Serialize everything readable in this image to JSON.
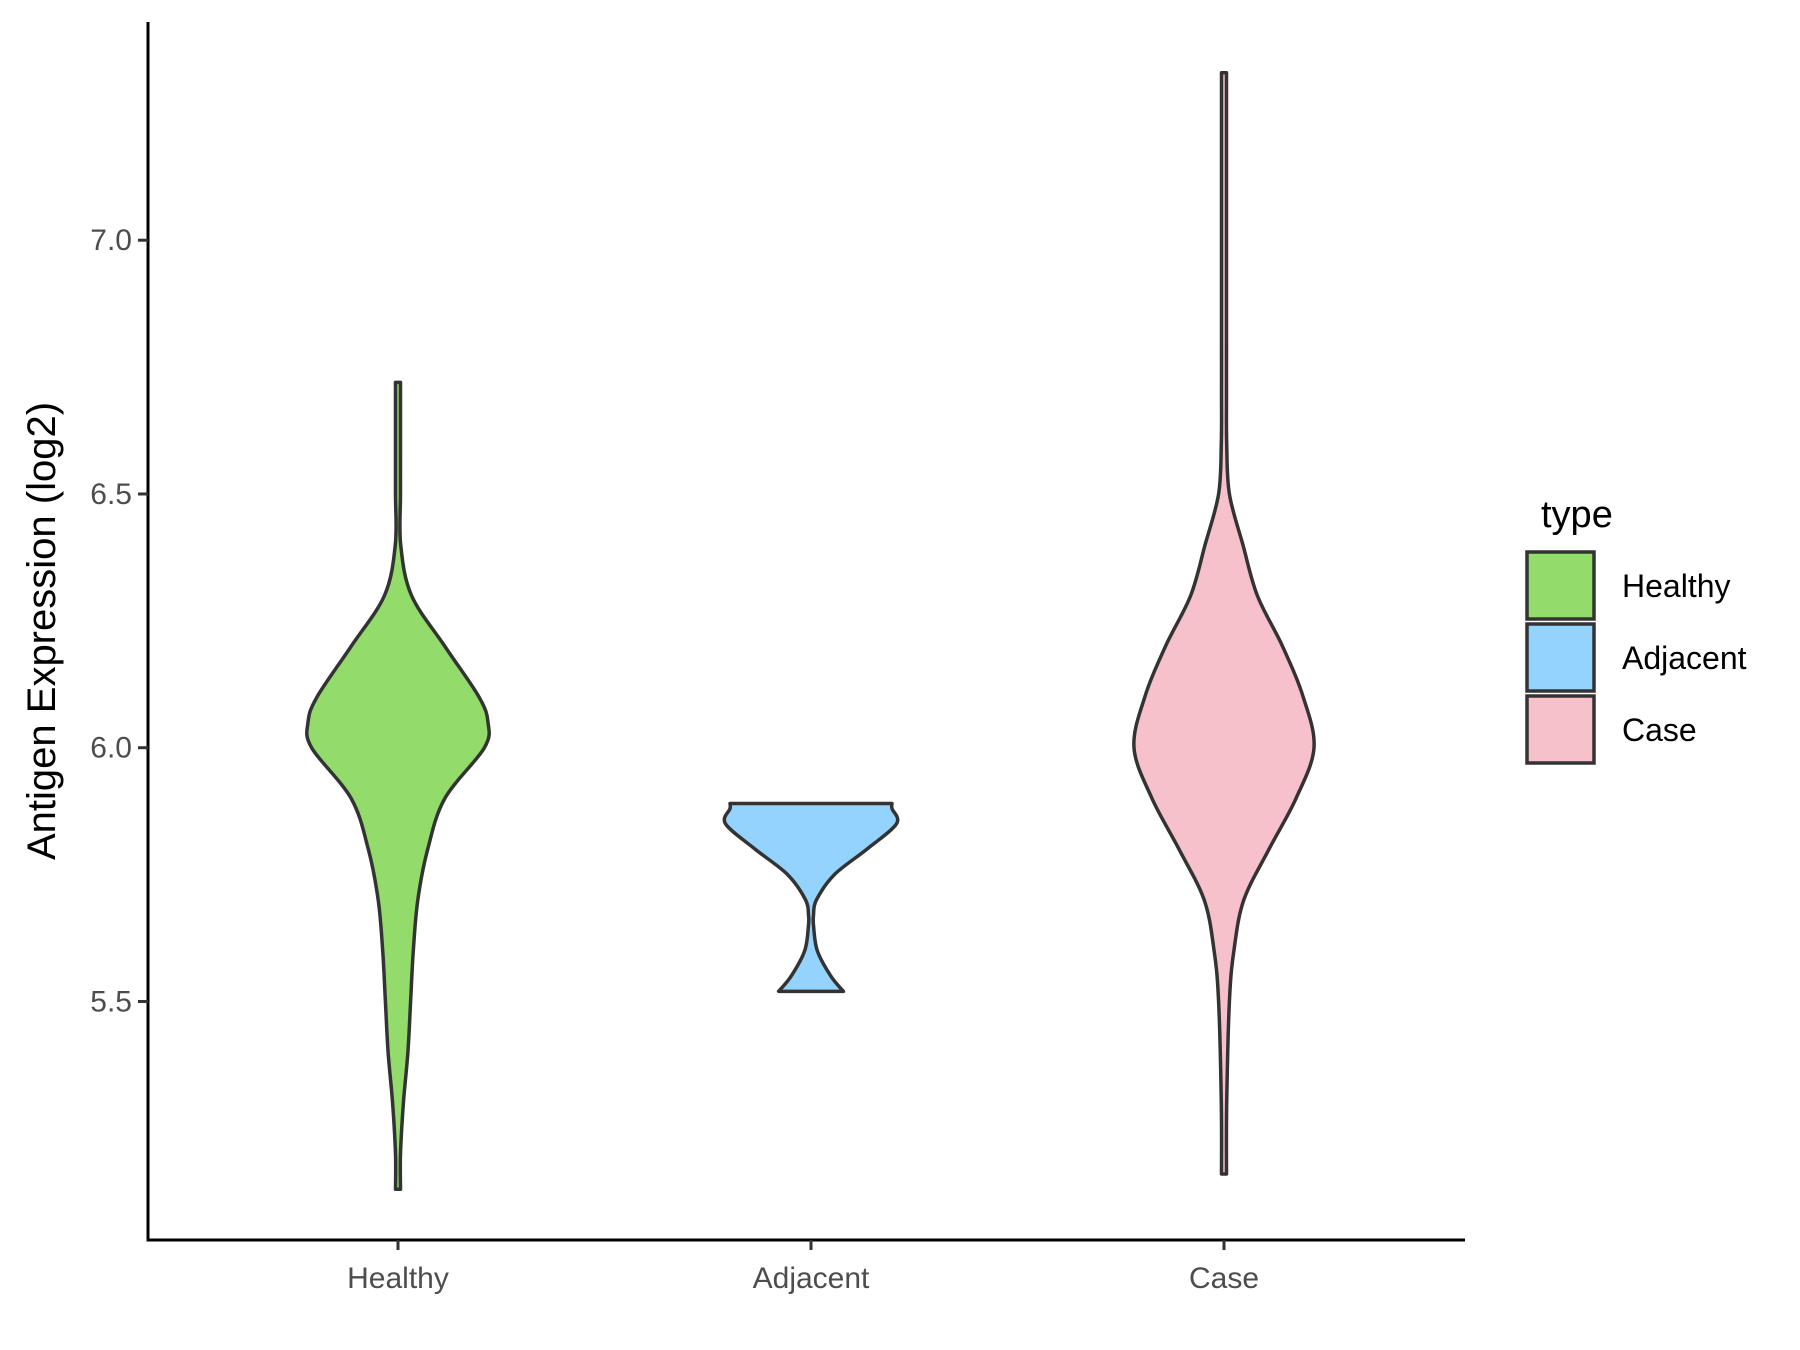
{
  "chart_data": {
    "type": "violin",
    "title": "",
    "xlabel": "",
    "ylabel": "Antigen Expression (log2)",
    "ylim": [
      5.03,
      7.43
    ],
    "yticks": [
      5.5,
      6.0,
      6.5,
      7.0
    ],
    "ytick_labels": [
      "5.5",
      "6.0",
      "6.5",
      "7.0"
    ],
    "categories": [
      "Healthy",
      "Adjacent",
      "Case"
    ],
    "grid": false,
    "legend": {
      "title": "type",
      "position": "right",
      "entries": [
        {
          "label": "Healthy",
          "color": "#93DB6A"
        },
        {
          "label": "Adjacent",
          "color": "#93D3FD"
        },
        {
          "label": "Case",
          "color": "#F7C1CC"
        }
      ]
    },
    "series": [
      {
        "category": "Healthy",
        "color": "#93DB6A",
        "min": 5.13,
        "max": 6.72,
        "density_profile": [
          [
            5.13,
            0.0
          ],
          [
            5.2,
            0.02
          ],
          [
            5.3,
            0.06
          ],
          [
            5.4,
            0.11
          ],
          [
            5.5,
            0.14
          ],
          [
            5.6,
            0.17
          ],
          [
            5.7,
            0.22
          ],
          [
            5.8,
            0.33
          ],
          [
            5.9,
            0.52
          ],
          [
            6.0,
            0.96
          ],
          [
            6.05,
            1.0
          ],
          [
            6.1,
            0.9
          ],
          [
            6.2,
            0.52
          ],
          [
            6.3,
            0.15
          ],
          [
            6.4,
            0.03
          ],
          [
            6.5,
            0.01
          ],
          [
            6.6,
            0.006
          ],
          [
            6.72,
            0.0
          ]
        ]
      },
      {
        "category": "Adjacent",
        "color": "#93D3FD",
        "min": 5.52,
        "max": 5.89,
        "density_profile": [
          [
            5.52,
            0.36
          ],
          [
            5.55,
            0.22
          ],
          [
            5.6,
            0.07
          ],
          [
            5.65,
            0.02
          ],
          [
            5.67,
            0.0
          ],
          [
            5.7,
            0.06
          ],
          [
            5.75,
            0.26
          ],
          [
            5.8,
            0.62
          ],
          [
            5.85,
            0.95
          ],
          [
            5.88,
            0.9
          ],
          [
            5.89,
            0.9
          ]
        ]
      },
      {
        "category": "Case",
        "color": "#F7C1CC",
        "min": 5.16,
        "max": 7.33,
        "density_profile": [
          [
            5.16,
            0.0
          ],
          [
            5.3,
            0.03
          ],
          [
            5.5,
            0.06
          ],
          [
            5.6,
            0.11
          ],
          [
            5.7,
            0.22
          ],
          [
            5.8,
            0.5
          ],
          [
            5.9,
            0.8
          ],
          [
            6.0,
            1.0
          ],
          [
            6.1,
            0.88
          ],
          [
            6.2,
            0.65
          ],
          [
            6.3,
            0.37
          ],
          [
            6.4,
            0.21
          ],
          [
            6.5,
            0.06
          ],
          [
            6.6,
            0.03
          ],
          [
            6.7,
            0.015
          ],
          [
            6.8,
            0.01
          ],
          [
            7.0,
            0.006
          ],
          [
            7.33,
            0.0
          ]
        ]
      }
    ]
  }
}
